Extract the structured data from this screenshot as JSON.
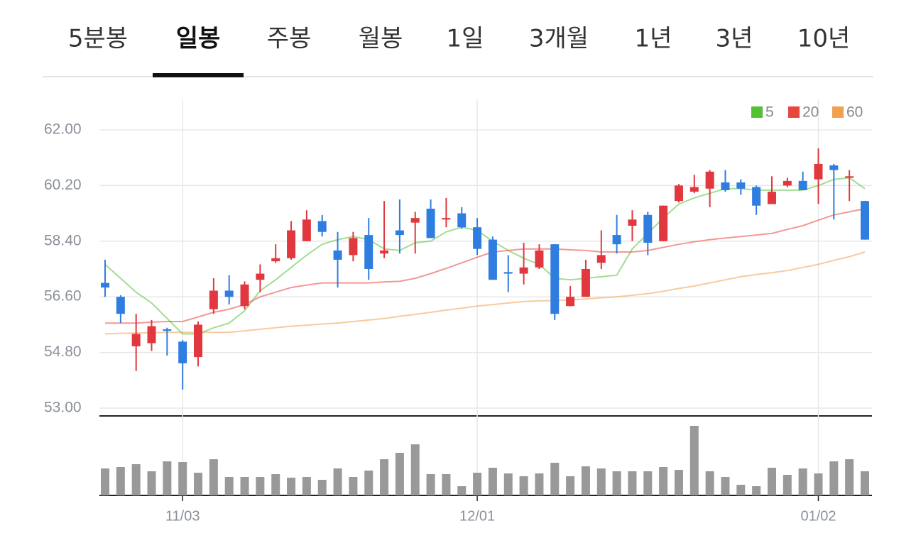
{
  "tabs": {
    "items": [
      "5분봉",
      "일봉",
      "주봉",
      "월봉",
      "1일",
      "3개월",
      "1년",
      "3년",
      "10년"
    ],
    "active": 1
  },
  "chart_data": {
    "type": "candlestick",
    "categories": [
      null,
      null,
      null,
      null,
      null,
      "11/03",
      null,
      null,
      null,
      null,
      null,
      null,
      null,
      null,
      null,
      null,
      null,
      null,
      null,
      null,
      null,
      null,
      null,
      null,
      "12/01",
      null,
      null,
      null,
      null,
      null,
      null,
      null,
      null,
      null,
      null,
      null,
      null,
      null,
      null,
      null,
      null,
      null,
      null,
      null,
      null,
      null,
      "01/02",
      null,
      null,
      null
    ],
    "open": [
      57.05,
      56.6,
      55.0,
      55.1,
      55.55,
      55.15,
      54.65,
      56.2,
      56.8,
      56.3,
      57.15,
      57.75,
      57.85,
      58.4,
      59.05,
      58.1,
      57.95,
      58.6,
      58.0,
      58.75,
      59.0,
      59.45,
      59.1,
      59.3,
      58.85,
      58.45,
      57.4,
      57.35,
      57.55,
      58.3,
      56.3,
      56.6,
      57.7,
      58.6,
      58.9,
      59.25,
      58.4,
      59.7,
      60.0,
      60.1,
      60.3,
      60.3,
      60.15,
      59.6,
      60.2,
      60.35,
      60.4,
      60.85,
      60.45,
      59.7
    ],
    "high": [
      57.8,
      56.65,
      56.05,
      55.85,
      55.6,
      55.2,
      55.8,
      57.2,
      57.3,
      57.1,
      57.65,
      58.3,
      59.05,
      59.4,
      59.25,
      58.7,
      58.7,
      59.15,
      59.7,
      59.75,
      59.35,
      59.75,
      59.8,
      59.5,
      59.15,
      58.55,
      57.95,
      58.35,
      58.3,
      58.3,
      56.95,
      57.8,
      58.75,
      59.25,
      59.4,
      59.35,
      59.55,
      60.25,
      60.55,
      60.7,
      60.7,
      60.4,
      60.2,
      60.5,
      60.45,
      60.65,
      61.4,
      60.9,
      60.7,
      59.7
    ],
    "low": [
      56.6,
      55.75,
      54.2,
      54.85,
      54.7,
      53.6,
      54.35,
      56.05,
      56.35,
      56.2,
      56.75,
      57.7,
      57.8,
      58.4,
      58.55,
      56.9,
      57.75,
      57.15,
      57.85,
      58.0,
      58.0,
      58.5,
      58.85,
      58.8,
      57.95,
      57.15,
      56.75,
      57.0,
      57.5,
      55.85,
      56.3,
      56.6,
      57.5,
      58.0,
      58.4,
      57.95,
      58.4,
      59.65,
      59.95,
      59.5,
      60.0,
      59.9,
      59.25,
      59.6,
      60.15,
      60.05,
      59.6,
      59.1,
      59.7,
      58.45
    ],
    "close": [
      56.9,
      56.05,
      55.4,
      55.65,
      55.5,
      54.45,
      55.7,
      56.8,
      56.6,
      57.0,
      57.35,
      57.85,
      58.75,
      59.1,
      58.7,
      57.8,
      58.5,
      57.5,
      58.1,
      58.6,
      59.15,
      58.5,
      59.15,
      58.85,
      58.15,
      57.15,
      57.35,
      57.55,
      58.1,
      56.05,
      56.6,
      57.5,
      57.95,
      58.3,
      59.1,
      58.35,
      59.55,
      60.2,
      60.15,
      60.65,
      60.05,
      60.1,
      59.55,
      60.0,
      60.35,
      60.05,
      60.9,
      60.7,
      60.5,
      58.45
    ],
    "up_color": "#e0383e",
    "down_color": "#2f7de1",
    "series": [
      {
        "name": "5",
        "color": "#52c234",
        "values": [
          57.65,
          57.2,
          56.75,
          56.4,
          55.9,
          55.4,
          55.4,
          55.6,
          55.75,
          56.15,
          56.8,
          57.15,
          57.55,
          57.95,
          58.3,
          58.45,
          58.55,
          58.45,
          58.15,
          58.1,
          58.35,
          58.4,
          58.7,
          58.85,
          58.75,
          58.4,
          58.1,
          57.85,
          57.65,
          57.2,
          57.15,
          57.2,
          57.25,
          57.3,
          58.15,
          58.65,
          59.15,
          59.6,
          59.8,
          59.95,
          60.1,
          60.1,
          60.05,
          60.05,
          60.05,
          60.05,
          60.2,
          60.4,
          60.45,
          60.1
        ]
      },
      {
        "name": "20",
        "color": "#e8453c",
        "values": [
          55.75,
          55.75,
          55.75,
          55.78,
          55.8,
          55.8,
          55.95,
          56.1,
          56.2,
          56.35,
          56.6,
          56.75,
          56.9,
          56.98,
          57.05,
          57.05,
          57.05,
          57.05,
          57.08,
          57.1,
          57.2,
          57.35,
          57.52,
          57.7,
          57.88,
          58.05,
          58.1,
          58.15,
          58.15,
          58.15,
          58.12,
          58.1,
          58.05,
          58.05,
          58.05,
          58.1,
          58.2,
          58.3,
          58.38,
          58.45,
          58.5,
          58.55,
          58.6,
          58.65,
          58.78,
          58.9,
          59.08,
          59.25,
          59.35,
          59.45
        ]
      },
      {
        "name": "60",
        "color": "#f0a050",
        "values": [
          55.4,
          55.42,
          55.43,
          55.44,
          55.45,
          55.45,
          55.45,
          55.45,
          55.45,
          55.5,
          55.55,
          55.6,
          55.65,
          55.68,
          55.72,
          55.75,
          55.8,
          55.85,
          55.9,
          55.97,
          56.03,
          56.1,
          56.17,
          56.23,
          56.3,
          56.35,
          56.4,
          56.45,
          56.47,
          56.48,
          56.5,
          56.53,
          56.57,
          56.6,
          56.65,
          56.7,
          56.78,
          56.87,
          56.95,
          57.05,
          57.15,
          57.25,
          57.32,
          57.38,
          57.45,
          57.55,
          57.65,
          57.78,
          57.9,
          58.05
        ]
      }
    ],
    "ylim": [
      53,
      62
    ],
    "yticks": [
      {
        "value": 62,
        "label": "62.00"
      },
      {
        "value": 60.2,
        "label": "60.20"
      },
      {
        "value": 58.4,
        "label": "58.40"
      },
      {
        "value": 56.6,
        "label": "56.60"
      },
      {
        "value": 54.8,
        "label": "54.80"
      },
      {
        "value": 53,
        "label": "53.00"
      }
    ],
    "grid": true,
    "volume": {
      "color": "#999999",
      "ylim": [
        0,
        100
      ],
      "values": [
        38,
        40,
        44,
        34,
        48,
        47,
        32,
        51,
        26,
        26,
        26,
        30,
        25,
        26,
        22,
        38,
        26,
        35,
        51,
        60,
        72,
        30,
        30,
        13,
        32,
        39,
        31,
        27,
        31,
        46,
        27,
        41,
        38,
        34,
        34,
        34,
        40,
        36,
        98,
        34,
        26,
        15,
        13,
        39,
        29,
        38,
        31,
        48,
        51,
        34
      ]
    }
  }
}
